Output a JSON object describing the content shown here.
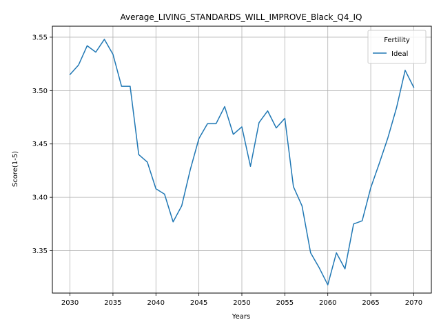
{
  "chart_data": {
    "type": "line",
    "title": "Average_LIVING_STANDARDS_WILL_IMPROVE_Black_Q4_IQ",
    "xlabel": "Years",
    "ylabel": "Score(1-5)",
    "xlim": [
      2027.95,
      2072.05
    ],
    "ylim": [
      3.3103,
      3.5603
    ],
    "xticks": [
      2030,
      2035,
      2040,
      2045,
      2050,
      2055,
      2060,
      2065,
      2070
    ],
    "yticks": [
      3.35,
      3.4,
      3.45,
      3.5,
      3.55
    ],
    "ytick_labels": [
      "3.35",
      "3.40",
      "3.45",
      "3.50",
      "3.55"
    ],
    "grid": true,
    "legend": {
      "title": "Fertility",
      "placement": "top-right"
    },
    "colors": {
      "series": "#1f77b4",
      "grid": "#b0b0b0"
    },
    "series": [
      {
        "name": "Ideal",
        "x": [
          2030,
          2031,
          2032,
          2033,
          2034,
          2035,
          2036,
          2037,
          2038,
          2039,
          2040,
          2041,
          2042,
          2043,
          2044,
          2045,
          2046,
          2047,
          2048,
          2049,
          2050,
          2051,
          2052,
          2053,
          2054,
          2055,
          2056,
          2057,
          2058,
          2059,
          2060,
          2061,
          2062,
          2063,
          2064,
          2065,
          2066,
          2067,
          2068,
          2069,
          2070
        ],
        "values": [
          3.515,
          3.524,
          3.542,
          3.536,
          3.548,
          3.534,
          3.504,
          3.504,
          3.44,
          3.433,
          3.408,
          3.403,
          3.377,
          3.392,
          3.426,
          3.455,
          3.469,
          3.469,
          3.485,
          3.459,
          3.466,
          3.429,
          3.47,
          3.481,
          3.465,
          3.474,
          3.41,
          3.392,
          3.348,
          3.334,
          3.318,
          3.348,
          3.333,
          3.375,
          3.378,
          3.409,
          3.432,
          3.456,
          3.484,
          3.519,
          3.503
        ]
      }
    ]
  }
}
